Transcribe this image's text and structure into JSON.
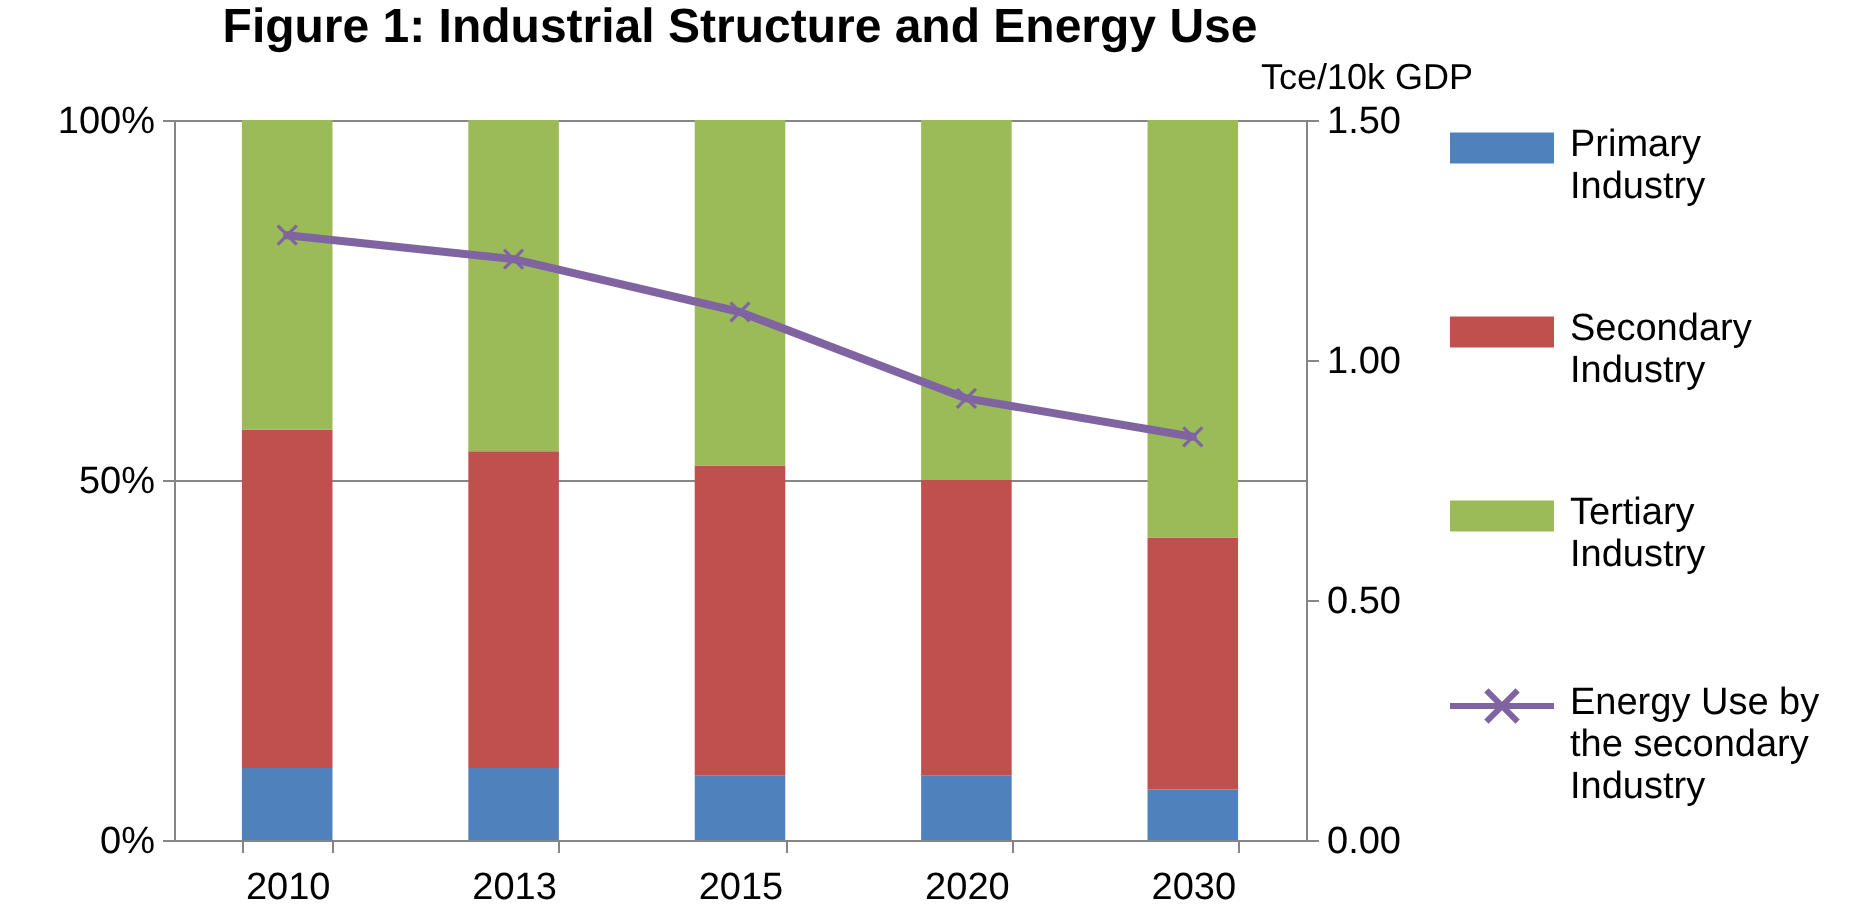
{
  "chart_data": {
    "type": "bar",
    "title": "Figure 1: Industrial Structure and Energy Use",
    "y2label": "Tce/10k GDP",
    "categories": [
      "2010",
      "2013",
      "2015",
      "2020",
      "2030"
    ],
    "stacked": true,
    "series": [
      {
        "name": "Primary Industry",
        "color": "#4f81bd",
        "values": [
          10,
          10,
          9,
          9,
          7
        ]
      },
      {
        "name": "Secondary Industry",
        "color": "#c0504d",
        "values": [
          47,
          44,
          43,
          41,
          35
        ]
      },
      {
        "name": "Tertiary Industry",
        "color": "#9bbb59",
        "values": [
          43,
          46,
          48,
          50,
          58
        ]
      },
      {
        "name": "Energy Use by the secondary Industry",
        "type": "line",
        "axis": "y2",
        "color": "#8064a2",
        "values": [
          1.26,
          1.21,
          1.1,
          0.92,
          0.84
        ]
      }
    ],
    "ylim": [
      0,
      100
    ],
    "yticks": [
      {
        "value": 0,
        "label": "0%"
      },
      {
        "value": 50,
        "label": "50%"
      },
      {
        "value": 100,
        "label": "100%"
      }
    ],
    "y2lim": [
      0,
      1.5
    ],
    "y2ticks": [
      {
        "value": 0,
        "label": "0.00"
      },
      {
        "value": 0.5,
        "label": "0.50"
      },
      {
        "value": 1,
        "label": "1.00"
      },
      {
        "value": 1.5,
        "label": "1.50"
      }
    ],
    "grid": "y",
    "legend": "right",
    "marker": "cross"
  }
}
